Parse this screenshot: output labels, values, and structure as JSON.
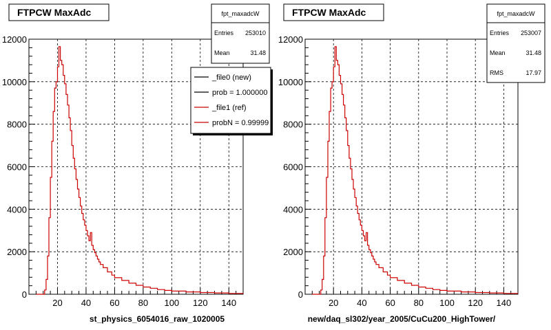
{
  "chart_data": [
    {
      "type": "line",
      "title": "FTPCW MaxAdc",
      "xlabel": "st_physics_6054016_raw_1020005",
      "ylabel": "",
      "xlim": [
        0,
        150
      ],
      "ylim": [
        0,
        12000
      ],
      "x_ticks": [
        "20",
        "40",
        "60",
        "80",
        "100",
        "120",
        "140"
      ],
      "y_ticks": [
        "0",
        "2000",
        "4000",
        "6000",
        "8000",
        "10000",
        "12000"
      ],
      "grid": true,
      "stats": {
        "name": "fpt_maxadcW",
        "rows": [
          {
            "label": "Entries",
            "value": "253010"
          },
          {
            "label": "Mean",
            "value": "31.48"
          }
        ]
      },
      "legend": [
        {
          "label": "_file0 (new)",
          "color": "#000000"
        },
        {
          "label": "prob = 1.000000",
          "color": "#000000"
        },
        {
          "label": "_file1 (ref)",
          "color": "#cc0000"
        },
        {
          "label": "probN = 0.99999",
          "color": "#cc0000"
        }
      ],
      "series": [
        {
          "color": "#cc0000",
          "x": [
            5,
            6,
            7,
            8,
            9,
            10,
            11,
            12,
            13,
            14,
            15,
            16,
            17,
            18,
            19,
            20,
            21,
            22,
            23,
            24,
            25,
            26,
            27,
            28,
            29,
            30,
            31,
            32,
            33,
            34,
            35,
            36,
            37,
            38,
            39,
            40,
            41,
            42,
            43,
            44,
            45,
            46,
            47,
            48,
            49,
            50,
            52,
            55,
            58,
            60,
            65,
            70,
            75,
            80,
            85,
            90,
            95,
            100,
            110,
            120,
            130,
            140,
            150
          ],
          "y": [
            0,
            0,
            0,
            0,
            0,
            0,
            200,
            700,
            1800,
            3600,
            5500,
            7200,
            8600,
            9700,
            10000,
            10700,
            11650,
            11000,
            10800,
            10300,
            9900,
            9400,
            8900,
            8300,
            7700,
            7000,
            6400,
            5900,
            5400,
            4950,
            4550,
            4150,
            3800,
            3500,
            3250,
            3000,
            2750,
            2520,
            2900,
            2300,
            2100,
            1950,
            1800,
            1650,
            1520,
            1400,
            1250,
            1050,
            900,
            780,
            650,
            520,
            420,
            340,
            280,
            220,
            180,
            150,
            110,
            80,
            60,
            40,
            30
          ]
        }
      ]
    },
    {
      "type": "line",
      "title": "FTPCW MaxAdc",
      "xlabel": "new/daq_sl302/year_2005/CuCu200_HighTower/",
      "ylabel": "",
      "xlim": [
        0,
        150
      ],
      "ylim": [
        0,
        12000
      ],
      "x_ticks": [
        "20",
        "40",
        "60",
        "80",
        "100",
        "120",
        "140"
      ],
      "y_ticks": [
        "0",
        "2000",
        "4000",
        "6000",
        "8000",
        "10000",
        "12000"
      ],
      "grid": true,
      "stats": {
        "name": "fpt_maxadcW",
        "rows": [
          {
            "label": "Entries",
            "value": "253007"
          },
          {
            "label": "Mean",
            "value": "31.48"
          },
          {
            "label": "RMS",
            "value": "17.97"
          }
        ]
      },
      "series": [
        {
          "color": "#cc0000",
          "x": [
            5,
            6,
            7,
            8,
            9,
            10,
            11,
            12,
            13,
            14,
            15,
            16,
            17,
            18,
            19,
            20,
            21,
            22,
            23,
            24,
            25,
            26,
            27,
            28,
            29,
            30,
            31,
            32,
            33,
            34,
            35,
            36,
            37,
            38,
            39,
            40,
            41,
            42,
            43,
            44,
            45,
            46,
            47,
            48,
            49,
            50,
            52,
            55,
            58,
            60,
            65,
            70,
            75,
            80,
            85,
            90,
            95,
            100,
            110,
            120,
            130,
            140,
            150
          ],
          "y": [
            0,
            0,
            0,
            0,
            0,
            0,
            200,
            700,
            1800,
            3600,
            5500,
            7200,
            8600,
            9700,
            10000,
            10700,
            11650,
            11000,
            10800,
            10300,
            9900,
            9400,
            8900,
            8300,
            7700,
            7000,
            6400,
            5900,
            5400,
            4950,
            4550,
            4150,
            3800,
            3500,
            3250,
            3000,
            2750,
            2520,
            2900,
            2300,
            2100,
            1950,
            1800,
            1650,
            1520,
            1400,
            1250,
            1050,
            900,
            780,
            650,
            520,
            420,
            340,
            280,
            220,
            180,
            150,
            110,
            80,
            60,
            40,
            30
          ]
        }
      ]
    }
  ]
}
